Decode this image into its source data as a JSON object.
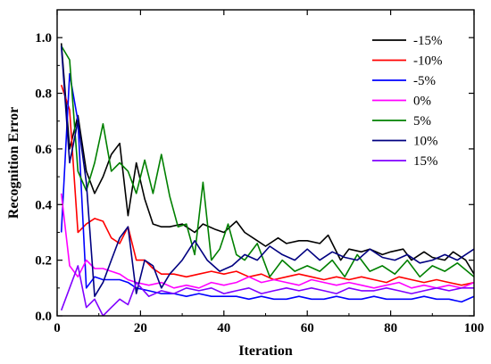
{
  "chart_data": {
    "type": "line",
    "xlabel": "Iteration",
    "ylabel": "Recognition Error",
    "xlim": [
      0,
      100
    ],
    "ylim": [
      0,
      1.1
    ],
    "x_ticks": [
      0,
      20,
      40,
      60,
      80,
      100
    ],
    "y_ticks": [
      0.0,
      0.2,
      0.4,
      0.6,
      0.8,
      1.0
    ],
    "x_tick_labels": [
      "0",
      "20",
      "40",
      "60",
      "80",
      "100"
    ],
    "y_tick_labels": [
      "0.0",
      "0.2",
      "0.4",
      "0.6",
      "0.8",
      "1.0"
    ],
    "grid": false,
    "legend_position": "top-right",
    "series": [
      {
        "name": "-15%",
        "color": "#000000",
        "x": [
          1,
          3,
          5,
          7,
          9,
          11,
          13,
          15,
          17,
          19,
          21,
          23,
          25,
          27,
          30,
          33,
          35,
          38,
          40,
          43,
          45,
          48,
          50,
          53,
          55,
          58,
          60,
          63,
          65,
          68,
          70,
          73,
          75,
          78,
          80,
          83,
          85,
          88,
          90,
          93,
          95,
          98,
          100
        ],
        "y": [
          0.98,
          0.6,
          0.72,
          0.52,
          0.44,
          0.5,
          0.58,
          0.62,
          0.36,
          0.55,
          0.42,
          0.33,
          0.32,
          0.32,
          0.33,
          0.3,
          0.33,
          0.31,
          0.3,
          0.34,
          0.3,
          0.27,
          0.25,
          0.28,
          0.26,
          0.27,
          0.27,
          0.26,
          0.29,
          0.2,
          0.24,
          0.23,
          0.24,
          0.22,
          0.23,
          0.24,
          0.2,
          0.23,
          0.21,
          0.2,
          0.23,
          0.2,
          0.15
        ]
      },
      {
        "name": "-10%",
        "color": "#ff0000",
        "x": [
          1,
          3,
          5,
          7,
          9,
          11,
          13,
          15,
          17,
          19,
          21,
          23,
          25,
          28,
          31,
          34,
          37,
          40,
          43,
          46,
          49,
          52,
          55,
          58,
          61,
          64,
          67,
          70,
          73,
          76,
          79,
          82,
          85,
          88,
          91,
          94,
          97,
          100
        ],
        "y": [
          0.83,
          0.74,
          0.3,
          0.33,
          0.35,
          0.34,
          0.28,
          0.26,
          0.32,
          0.2,
          0.2,
          0.17,
          0.15,
          0.15,
          0.14,
          0.15,
          0.16,
          0.15,
          0.16,
          0.14,
          0.15,
          0.13,
          0.14,
          0.15,
          0.14,
          0.13,
          0.14,
          0.13,
          0.14,
          0.13,
          0.12,
          0.14,
          0.13,
          0.12,
          0.13,
          0.12,
          0.11,
          0.12
        ]
      },
      {
        "name": "-5%",
        "color": "#0000ff",
        "x": [
          1,
          3,
          5,
          7,
          9,
          11,
          13,
          15,
          17,
          19,
          22,
          25,
          28,
          31,
          34,
          37,
          40,
          43,
          46,
          49,
          52,
          55,
          58,
          61,
          64,
          67,
          70,
          73,
          76,
          79,
          82,
          85,
          88,
          91,
          94,
          97,
          100
        ],
        "y": [
          0.3,
          0.87,
          0.7,
          0.1,
          0.14,
          0.13,
          0.13,
          0.13,
          0.12,
          0.1,
          0.09,
          0.08,
          0.08,
          0.07,
          0.08,
          0.07,
          0.07,
          0.07,
          0.06,
          0.07,
          0.06,
          0.06,
          0.07,
          0.06,
          0.06,
          0.07,
          0.06,
          0.06,
          0.07,
          0.06,
          0.06,
          0.06,
          0.07,
          0.06,
          0.06,
          0.05,
          0.07
        ]
      },
      {
        "name": "0%",
        "color": "#ff00ff",
        "x": [
          1,
          3,
          5,
          7,
          9,
          11,
          13,
          15,
          17,
          19,
          22,
          25,
          28,
          31,
          34,
          37,
          40,
          43,
          46,
          49,
          52,
          55,
          58,
          61,
          64,
          67,
          70,
          73,
          76,
          79,
          82,
          85,
          88,
          91,
          94,
          97,
          100
        ],
        "y": [
          0.44,
          0.18,
          0.14,
          0.2,
          0.17,
          0.17,
          0.16,
          0.15,
          0.13,
          0.12,
          0.11,
          0.12,
          0.1,
          0.11,
          0.1,
          0.12,
          0.11,
          0.12,
          0.14,
          0.12,
          0.13,
          0.12,
          0.11,
          0.13,
          0.12,
          0.11,
          0.12,
          0.11,
          0.1,
          0.11,
          0.12,
          0.1,
          0.11,
          0.1,
          0.11,
          0.1,
          0.12
        ]
      },
      {
        "name": "5%",
        "color": "#008000",
        "x": [
          1,
          3,
          5,
          7,
          9,
          11,
          13,
          15,
          17,
          19,
          21,
          23,
          25,
          27,
          29,
          31,
          33,
          35,
          37,
          39,
          41,
          43,
          45,
          48,
          51,
          54,
          57,
          60,
          63,
          66,
          69,
          72,
          75,
          78,
          81,
          84,
          87,
          90,
          93,
          96,
          100
        ],
        "y": [
          0.97,
          0.92,
          0.52,
          0.45,
          0.55,
          0.69,
          0.52,
          0.55,
          0.52,
          0.44,
          0.56,
          0.44,
          0.58,
          0.43,
          0.32,
          0.33,
          0.22,
          0.48,
          0.2,
          0.24,
          0.33,
          0.22,
          0.2,
          0.26,
          0.14,
          0.2,
          0.16,
          0.18,
          0.16,
          0.2,
          0.14,
          0.22,
          0.16,
          0.18,
          0.15,
          0.2,
          0.14,
          0.18,
          0.16,
          0.19,
          0.14
        ]
      },
      {
        "name": "10%",
        "color": "#000080",
        "x": [
          1,
          3,
          5,
          7,
          9,
          11,
          13,
          15,
          17,
          19,
          21,
          23,
          25,
          27,
          30,
          33,
          36,
          39,
          42,
          45,
          48,
          51,
          54,
          57,
          60,
          63,
          66,
          69,
          72,
          75,
          78,
          81,
          84,
          87,
          90,
          93,
          96,
          100
        ],
        "y": [
          0.97,
          0.55,
          0.7,
          0.48,
          0.07,
          0.12,
          0.2,
          0.28,
          0.32,
          0.08,
          0.2,
          0.18,
          0.1,
          0.15,
          0.2,
          0.27,
          0.2,
          0.16,
          0.18,
          0.22,
          0.2,
          0.25,
          0.22,
          0.2,
          0.24,
          0.2,
          0.23,
          0.21,
          0.2,
          0.24,
          0.21,
          0.2,
          0.22,
          0.19,
          0.2,
          0.22,
          0.2,
          0.24
        ]
      },
      {
        "name": "15%",
        "color": "#8000ff",
        "x": [
          1,
          3,
          5,
          7,
          9,
          11,
          13,
          15,
          17,
          19,
          22,
          25,
          28,
          31,
          34,
          37,
          40,
          43,
          46,
          49,
          52,
          55,
          58,
          61,
          64,
          67,
          70,
          73,
          76,
          79,
          82,
          85,
          88,
          91,
          94,
          97,
          100
        ],
        "y": [
          0.02,
          0.1,
          0.18,
          0.03,
          0.06,
          0.0,
          0.03,
          0.06,
          0.04,
          0.12,
          0.07,
          0.09,
          0.08,
          0.1,
          0.09,
          0.1,
          0.08,
          0.09,
          0.1,
          0.08,
          0.09,
          0.1,
          0.09,
          0.1,
          0.09,
          0.08,
          0.1,
          0.09,
          0.09,
          0.1,
          0.09,
          0.08,
          0.09,
          0.1,
          0.09,
          0.1,
          0.1
        ]
      }
    ]
  }
}
